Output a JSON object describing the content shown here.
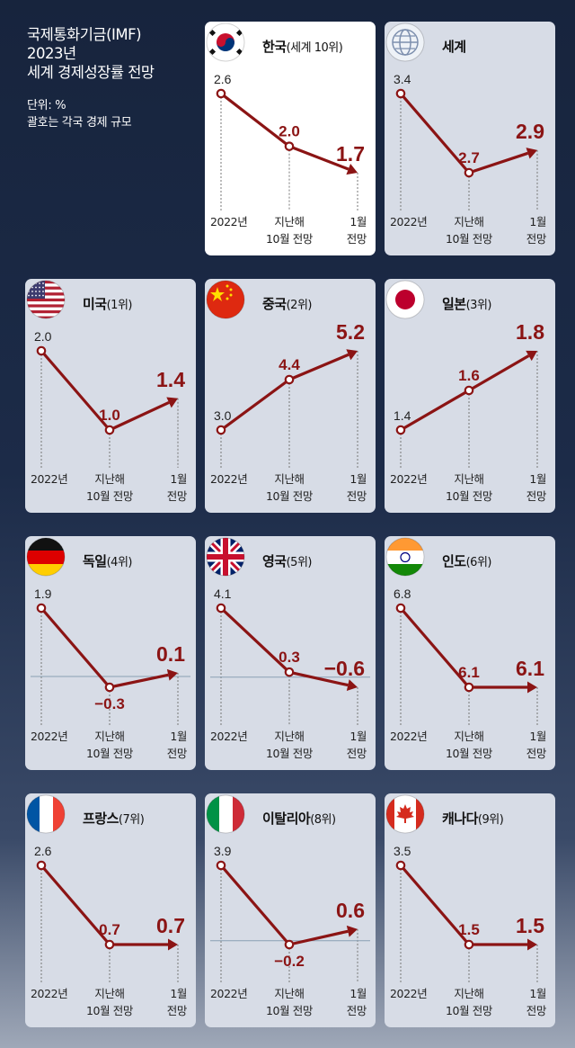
{
  "header": {
    "title_lines": [
      "국제통화기금(IMF)",
      "2023년",
      "세계 경제성장률 전망"
    ],
    "notes": [
      "단위: %",
      "괄호는 각국 경제 규모"
    ]
  },
  "x_labels": [
    [
      "2022년"
    ],
    [
      "지난해",
      "10월 전망"
    ],
    [
      "1월",
      "전망"
    ]
  ],
  "colors": {
    "line": "#8b1414",
    "accent_text": "#8b1414",
    "card_bg": "#d7dce6",
    "highlight_bg": "#ffffff"
  },
  "chart_data": [
    {
      "type": "line",
      "name": "한국",
      "rank": "(세계 10위)",
      "flag_icon": "korea-flag-icon",
      "highlight": true,
      "categories": [
        "2022년",
        "지난해 10월 전망",
        "1월 전망"
      ],
      "values": [
        2.6,
        2.0,
        1.7
      ],
      "labels": [
        "2.6",
        "2.0",
        "1.7"
      ]
    },
    {
      "type": "line",
      "name": "세계",
      "rank": "",
      "flag_icon": "globe-icon",
      "categories": [
        "2022년",
        "지난해 10월 전망",
        "1월 전망"
      ],
      "values": [
        3.4,
        2.7,
        2.9
      ],
      "labels": [
        "3.4",
        "2.7",
        "2.9"
      ]
    },
    {
      "type": "line",
      "name": "미국",
      "rank": "(1위)",
      "flag_icon": "usa-flag-icon",
      "categories": [
        "2022년",
        "지난해 10월 전망",
        "1월 전망"
      ],
      "values": [
        2.0,
        1.0,
        1.4
      ],
      "labels": [
        "2.0",
        "1.0",
        "1.4"
      ]
    },
    {
      "type": "line",
      "name": "중국",
      "rank": "(2위)",
      "flag_icon": "china-flag-icon",
      "categories": [
        "2022년",
        "지난해 10월 전망",
        "1월 전망"
      ],
      "values": [
        3.0,
        4.4,
        5.2
      ],
      "labels": [
        "3.0",
        "4.4",
        "5.2"
      ]
    },
    {
      "type": "line",
      "name": "일본",
      "rank": "(3위)",
      "flag_icon": "japan-flag-icon",
      "categories": [
        "2022년",
        "지난해 10월 전망",
        "1월 전망"
      ],
      "values": [
        1.4,
        1.6,
        1.8
      ],
      "labels": [
        "1.4",
        "1.6",
        "1.8"
      ]
    },
    {
      "type": "line",
      "name": "독일",
      "rank": "(4위)",
      "flag_icon": "germany-flag-icon",
      "zero_line": true,
      "categories": [
        "2022년",
        "지난해 10월 전망",
        "1월 전망"
      ],
      "values": [
        1.9,
        -0.3,
        0.1
      ],
      "labels": [
        "1.9",
        "−0.3",
        "0.1"
      ]
    },
    {
      "type": "line",
      "name": "영국",
      "rank": "(5위)",
      "flag_icon": "uk-flag-icon",
      "zero_line": true,
      "categories": [
        "2022년",
        "지난해 10월 전망",
        "1월 전망"
      ],
      "values": [
        4.1,
        0.3,
        -0.6
      ],
      "labels": [
        "4.1",
        "0.3",
        "−0.6"
      ]
    },
    {
      "type": "line",
      "name": "인도",
      "rank": "(6위)",
      "flag_icon": "india-flag-icon",
      "categories": [
        "2022년",
        "지난해 10월 전망",
        "1월 전망"
      ],
      "values": [
        6.8,
        6.1,
        6.1
      ],
      "labels": [
        "6.8",
        "6.1",
        "6.1"
      ]
    },
    {
      "type": "line",
      "name": "프랑스",
      "rank": "(7위)",
      "flag_icon": "france-flag-icon",
      "categories": [
        "2022년",
        "지난해 10월 전망",
        "1월 전망"
      ],
      "values": [
        2.6,
        0.7,
        0.7
      ],
      "labels": [
        "2.6",
        "0.7",
        "0.7"
      ]
    },
    {
      "type": "line",
      "name": "이탈리아",
      "rank": "(8위)",
      "flag_icon": "italy-flag-icon",
      "zero_line": true,
      "categories": [
        "2022년",
        "지난해 10월 전망",
        "1월 전망"
      ],
      "values": [
        3.9,
        -0.2,
        0.6
      ],
      "labels": [
        "3.9",
        "−0.2",
        "0.6"
      ]
    },
    {
      "type": "line",
      "name": "캐나다",
      "rank": "(9위)",
      "flag_icon": "canada-flag-icon",
      "categories": [
        "2022년",
        "지난해 10월 전망",
        "1월 전망"
      ],
      "values": [
        3.5,
        1.5,
        1.5
      ],
      "labels": [
        "3.5",
        "1.5",
        "1.5"
      ]
    }
  ]
}
